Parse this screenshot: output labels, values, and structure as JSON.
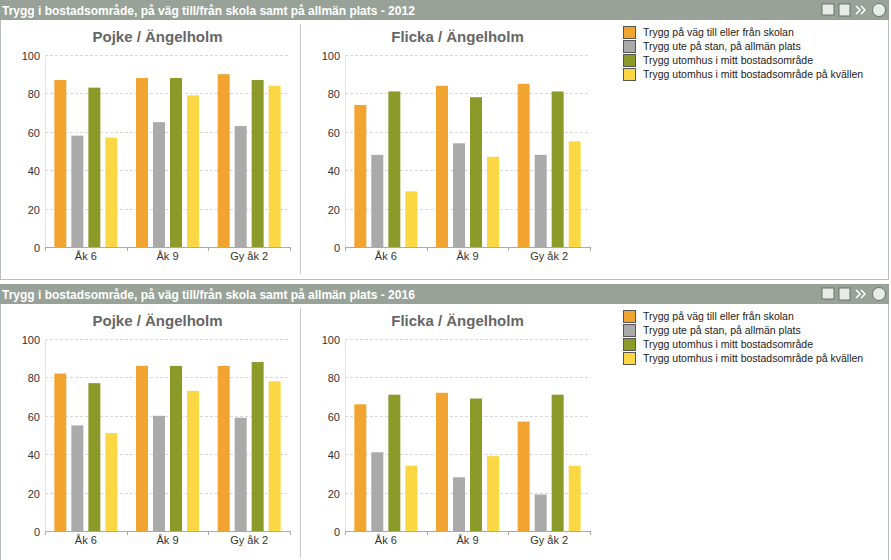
{
  "panels": [
    {
      "title": "Trygg i bostadsområde, på väg till/från skola samt på allmän plats - 2012"
    },
    {
      "title": "Trygg i bostadsområde, på väg till/från skola samt på allmän plats - 2016"
    }
  ],
  "chart_data": [
    {
      "type": "bar",
      "title": "Pojke / Ängelholm",
      "categories": [
        "Åk 6",
        "Åk 9",
        "Gy åk 2"
      ],
      "series": [
        {
          "name": "Trygg på väg till eller från skolan",
          "color": "#f2a430",
          "values": [
            87,
            88,
            90
          ]
        },
        {
          "name": "Trygg ute på stan, på allmän plats",
          "color": "#aaaaaa",
          "values": [
            58,
            65,
            63
          ]
        },
        {
          "name": "Trygg utomhus i mitt bostadsområde",
          "color": "#8c9a2a",
          "values": [
            83,
            88,
            87
          ]
        },
        {
          "name": "Trygg utomhus i mitt bostadsområde på kvällen",
          "color": "#fbd843",
          "values": [
            57,
            79,
            84
          ]
        }
      ],
      "ylim": [
        0,
        100
      ],
      "yticks": [
        0,
        20,
        40,
        60,
        80,
        100
      ],
      "grid": true
    },
    {
      "type": "bar",
      "title": "Flicka / Ängelholm",
      "categories": [
        "Åk 6",
        "Åk 9",
        "Gy åk 2"
      ],
      "series": [
        {
          "name": "Trygg på väg till eller från skolan",
          "color": "#f2a430",
          "values": [
            74,
            84,
            85
          ]
        },
        {
          "name": "Trygg ute på stan, på allmän plats",
          "color": "#aaaaaa",
          "values": [
            48,
            54,
            48
          ]
        },
        {
          "name": "Trygg utomhus i mitt bostadsområde",
          "color": "#8c9a2a",
          "values": [
            81,
            78,
            81
          ]
        },
        {
          "name": "Trygg utomhus i mitt bostadsområde på kvällen",
          "color": "#fbd843",
          "values": [
            29,
            47,
            55
          ]
        }
      ],
      "ylim": [
        0,
        100
      ],
      "yticks": [
        0,
        20,
        40,
        60,
        80,
        100
      ],
      "grid": true
    },
    {
      "type": "bar",
      "title": "Pojke / Ängelholm",
      "categories": [
        "Åk 6",
        "Åk 9",
        "Gy åk 2"
      ],
      "series": [
        {
          "name": "Trygg på väg till eller från skolan",
          "color": "#f2a430",
          "values": [
            82,
            86,
            86
          ]
        },
        {
          "name": "Trygg ute på stan, på allmän plats",
          "color": "#aaaaaa",
          "values": [
            55,
            60,
            59
          ]
        },
        {
          "name": "Trygg utomhus i mitt bostadsområde",
          "color": "#8c9a2a",
          "values": [
            77,
            86,
            88
          ]
        },
        {
          "name": "Trygg utomhus i mitt bostadsområde på kvällen",
          "color": "#fbd843",
          "values": [
            51,
            73,
            78
          ]
        }
      ],
      "ylim": [
        0,
        100
      ],
      "yticks": [
        0,
        20,
        40,
        60,
        80,
        100
      ],
      "grid": true
    },
    {
      "type": "bar",
      "title": "Flicka / Ängelholm",
      "categories": [
        "Åk 6",
        "Åk 9",
        "Gy åk 2"
      ],
      "series": [
        {
          "name": "Trygg på väg till eller från skolan",
          "color": "#f2a430",
          "values": [
            66,
            72,
            57
          ]
        },
        {
          "name": "Trygg ute på stan, på allmän plats",
          "color": "#aaaaaa",
          "values": [
            41,
            28,
            19
          ]
        },
        {
          "name": "Trygg utomhus i mitt bostadsområde",
          "color": "#8c9a2a",
          "values": [
            71,
            69,
            71
          ]
        },
        {
          "name": "Trygg utomhus i mitt bostadsområde på kvällen",
          "color": "#fbd843",
          "values": [
            34,
            39,
            34
          ]
        }
      ],
      "ylim": [
        0,
        100
      ],
      "yticks": [
        0,
        20,
        40,
        60,
        80,
        100
      ],
      "grid": true
    }
  ]
}
